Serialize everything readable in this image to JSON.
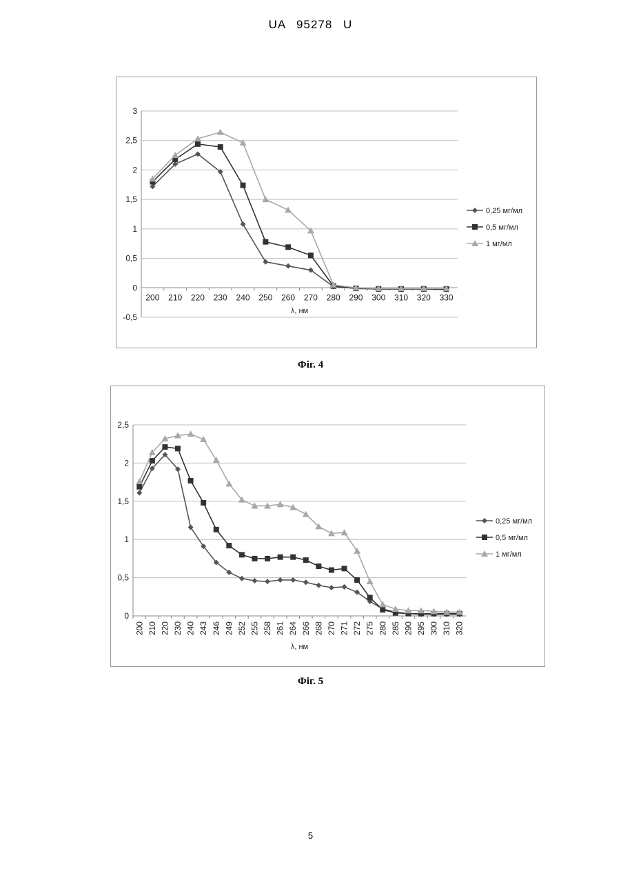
{
  "header": {
    "text": "UA   95278   U"
  },
  "figures": [
    {
      "caption": "Фіг. 4"
    },
    {
      "caption": "Фіг. 5"
    }
  ],
  "page_number": "5",
  "colors": {
    "series1": "#555555",
    "series2": "#333333",
    "series3": "#a8a8a8",
    "grid": "#bdbdbd"
  },
  "chart_data": [
    {
      "type": "line",
      "title": "",
      "xlabel": "λ, нм",
      "ylabel": "",
      "categories": [
        "200",
        "210",
        "220",
        "230",
        "240",
        "250",
        "260",
        "270",
        "280",
        "290",
        "300",
        "310",
        "320",
        "330"
      ],
      "ylim": [
        -0.5,
        3
      ],
      "yticks": [
        -0.5,
        0,
        0.5,
        1,
        1.5,
        2,
        2.5,
        3
      ],
      "ytick_labels": [
        "-0,5",
        "0",
        "0,5",
        "1",
        "1,5",
        "2",
        "2,5",
        "3"
      ],
      "grid": true,
      "legend": "right",
      "series": [
        {
          "name": "0,25 мг/мл",
          "marker": "diamond",
          "values": [
            1.72,
            2.1,
            2.27,
            1.97,
            1.08,
            0.44,
            0.37,
            0.3,
            0.02,
            -0.01,
            -0.02,
            -0.02,
            -0.02,
            -0.03
          ]
        },
        {
          "name": "0,5 мг/мл",
          "marker": "square",
          "values": [
            1.8,
            2.18,
            2.44,
            2.39,
            1.74,
            0.78,
            0.69,
            0.55,
            0.03,
            -0.01,
            -0.02,
            -0.02,
            -0.02,
            -0.02
          ]
        },
        {
          "name": "1 мг/мл",
          "marker": "triangle",
          "values": [
            1.85,
            2.25,
            2.53,
            2.64,
            2.46,
            1.5,
            1.32,
            0.97,
            0.05,
            0.0,
            -0.01,
            -0.01,
            -0.01,
            -0.01
          ]
        }
      ]
    },
    {
      "type": "line",
      "title": "",
      "xlabel": "λ, нм",
      "ylabel": "",
      "categories": [
        "200",
        "210",
        "220",
        "230",
        "240",
        "243",
        "246",
        "249",
        "252",
        "255",
        "258",
        "261",
        "264",
        "266",
        "268",
        "270",
        "271",
        "272",
        "275",
        "280",
        "285",
        "290",
        "295",
        "300",
        "310",
        "320"
      ],
      "ylim": [
        0,
        2.5
      ],
      "yticks": [
        0,
        0.5,
        1,
        1.5,
        2,
        2.5
      ],
      "ytick_labels": [
        "0",
        "0,5",
        "1",
        "1,5",
        "2",
        "2,5"
      ],
      "grid": true,
      "legend": "right",
      "series": [
        {
          "name": "0,25 мг/мл",
          "marker": "diamond",
          "values": [
            1.61,
            1.93,
            2.11,
            1.92,
            1.16,
            0.91,
            0.7,
            0.57,
            0.49,
            0.46,
            0.45,
            0.47,
            0.47,
            0.44,
            0.4,
            0.37,
            0.38,
            0.31,
            0.19,
            0.09,
            0.05,
            0.03,
            0.02,
            0.02,
            0.02,
            0.02
          ]
        },
        {
          "name": "0,5 мг/мл",
          "marker": "square",
          "values": [
            1.69,
            2.03,
            2.21,
            2.19,
            1.77,
            1.48,
            1.13,
            0.92,
            0.8,
            0.75,
            0.75,
            0.77,
            0.77,
            0.73,
            0.65,
            0.6,
            0.62,
            0.47,
            0.24,
            0.08,
            0.04,
            0.03,
            0.03,
            0.03,
            0.03,
            0.03
          ]
        },
        {
          "name": "1 мг/мл",
          "marker": "triangle",
          "values": [
            1.76,
            2.14,
            2.32,
            2.36,
            2.38,
            2.31,
            2.04,
            1.73,
            1.52,
            1.44,
            1.44,
            1.46,
            1.42,
            1.33,
            1.17,
            1.08,
            1.09,
            0.85,
            0.45,
            0.15,
            0.09,
            0.07,
            0.07,
            0.06,
            0.05,
            0.05
          ]
        }
      ]
    }
  ]
}
